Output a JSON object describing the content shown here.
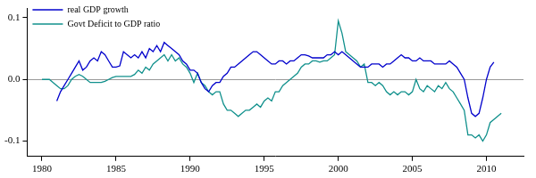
{
  "chart_data": {
    "type": "line",
    "x": [
      1980.0,
      1980.25,
      1980.5,
      1980.75,
      1981.0,
      1981.25,
      1981.5,
      1981.75,
      1982.0,
      1982.25,
      1982.5,
      1982.75,
      1983.0,
      1983.25,
      1983.5,
      1983.75,
      1984.0,
      1984.25,
      1984.5,
      1984.75,
      1985.0,
      1985.25,
      1985.5,
      1985.75,
      1986.0,
      1986.25,
      1986.5,
      1986.75,
      1987.0,
      1987.25,
      1987.5,
      1987.75,
      1988.0,
      1988.25,
      1988.5,
      1988.75,
      1989.0,
      1989.25,
      1989.5,
      1989.75,
      1990.0,
      1990.25,
      1990.5,
      1990.75,
      1991.0,
      1991.25,
      1991.5,
      1991.75,
      1992.0,
      1992.25,
      1992.5,
      1992.75,
      1993.0,
      1993.25,
      1993.5,
      1993.75,
      1994.0,
      1994.25,
      1994.5,
      1994.75,
      1995.0,
      1995.25,
      1995.5,
      1995.75,
      1996.0,
      1996.25,
      1996.5,
      1996.75,
      1997.0,
      1997.25,
      1997.5,
      1997.75,
      1998.0,
      1998.25,
      1998.5,
      1998.75,
      1999.0,
      1999.25,
      1999.5,
      1999.75,
      2000.0,
      2000.25,
      2000.5,
      2000.75,
      2001.0,
      2001.25,
      2001.5,
      2001.75,
      2002.0,
      2002.25,
      2002.5,
      2002.75,
      2003.0,
      2003.25,
      2003.5,
      2003.75,
      2004.0,
      2004.25,
      2004.5,
      2004.75,
      2005.0,
      2005.25,
      2005.5,
      2005.75,
      2006.0,
      2006.25,
      2006.5,
      2006.75,
      2007.0,
      2007.25,
      2007.5,
      2007.75,
      2008.0,
      2008.25,
      2008.5,
      2008.75,
      2009.0,
      2009.25,
      2009.5,
      2009.75,
      2010.0,
      2010.25,
      2010.5,
      2010.75,
      2011.0
    ],
    "series": [
      {
        "name": "real GDP growth",
        "color": "#0000cc",
        "values": [
          null,
          null,
          null,
          null,
          -0.035,
          -0.02,
          -0.01,
          0.0,
          0.01,
          0.02,
          0.03,
          0.015,
          0.02,
          0.03,
          0.035,
          0.03,
          0.045,
          0.04,
          0.03,
          0.02,
          0.02,
          0.022,
          0.045,
          0.04,
          0.035,
          0.04,
          0.035,
          0.045,
          0.035,
          0.05,
          0.045,
          0.055,
          0.045,
          0.06,
          0.055,
          0.05,
          0.045,
          0.04,
          0.03,
          0.025,
          0.015,
          0.015,
          0.01,
          -0.005,
          -0.015,
          -0.02,
          -0.01,
          -0.005,
          -0.005,
          0.005,
          0.01,
          0.02,
          0.02,
          0.025,
          0.03,
          0.035,
          0.04,
          0.045,
          0.045,
          0.04,
          0.035,
          0.03,
          0.025,
          0.025,
          0.03,
          0.03,
          0.025,
          0.03,
          0.03,
          0.035,
          0.04,
          0.04,
          0.038,
          0.035,
          0.035,
          0.035,
          0.035,
          0.04,
          0.04,
          0.045,
          0.04,
          0.045,
          0.04,
          0.035,
          0.03,
          0.025,
          0.02,
          0.02,
          0.02,
          0.025,
          0.025,
          0.025,
          0.02,
          0.025,
          0.025,
          0.03,
          0.035,
          0.04,
          0.035,
          0.035,
          0.03,
          0.03,
          0.035,
          0.03,
          0.03,
          0.03,
          0.025,
          0.025,
          0.025,
          0.025,
          0.03,
          0.025,
          0.02,
          0.01,
          0.0,
          -0.03,
          -0.055,
          -0.06,
          -0.055,
          -0.03,
          0.0,
          0.02,
          0.028,
          null,
          null
        ]
      },
      {
        "name": "Govt Deficit to GDP ratio",
        "color": "#10908c",
        "values": [
          0.0,
          0.0,
          0.0,
          -0.005,
          -0.01,
          -0.015,
          -0.015,
          -0.01,
          0.0,
          0.005,
          0.008,
          0.005,
          0.0,
          -0.005,
          -0.005,
          -0.005,
          -0.005,
          -0.003,
          0.0,
          0.003,
          0.005,
          0.005,
          0.005,
          0.005,
          0.005,
          0.008,
          0.015,
          0.01,
          0.02,
          0.015,
          0.025,
          0.03,
          0.035,
          0.04,
          0.03,
          0.04,
          0.03,
          0.035,
          0.025,
          0.02,
          0.01,
          -0.005,
          0.01,
          -0.005,
          -0.01,
          -0.02,
          -0.025,
          -0.02,
          -0.02,
          -0.04,
          -0.05,
          -0.05,
          -0.055,
          -0.06,
          -0.055,
          -0.05,
          -0.05,
          -0.045,
          -0.04,
          -0.045,
          -0.035,
          -0.03,
          -0.035,
          -0.02,
          -0.02,
          -0.01,
          -0.005,
          0.0,
          0.005,
          0.01,
          0.02,
          0.025,
          0.025,
          0.03,
          0.03,
          0.028,
          0.03,
          0.03,
          0.035,
          0.04,
          0.095,
          0.075,
          0.045,
          0.04,
          0.035,
          0.03,
          0.02,
          0.025,
          -0.005,
          -0.005,
          -0.01,
          -0.005,
          -0.01,
          -0.02,
          -0.025,
          -0.02,
          -0.025,
          -0.02,
          -0.02,
          -0.025,
          -0.02,
          0.0,
          -0.015,
          -0.02,
          -0.01,
          -0.015,
          -0.02,
          -0.01,
          -0.015,
          -0.005,
          -0.015,
          -0.02,
          -0.03,
          -0.04,
          -0.05,
          -0.09,
          -0.09,
          -0.095,
          -0.09,
          -0.1,
          -0.09,
          -0.07,
          -0.065,
          -0.06,
          -0.055
        ]
      }
    ],
    "xlim": [
      1979,
      2012.5
    ],
    "xticks": [
      1980,
      1985,
      1990,
      1995,
      2000,
      2005,
      2010
    ],
    "ylim": [
      -0.125,
      0.115
    ],
    "yticks": [
      -0.1,
      {
        "value": 0,
        "label": "0.0"
      },
      0.1
    ],
    "grid": false,
    "legend": "upper left"
  }
}
